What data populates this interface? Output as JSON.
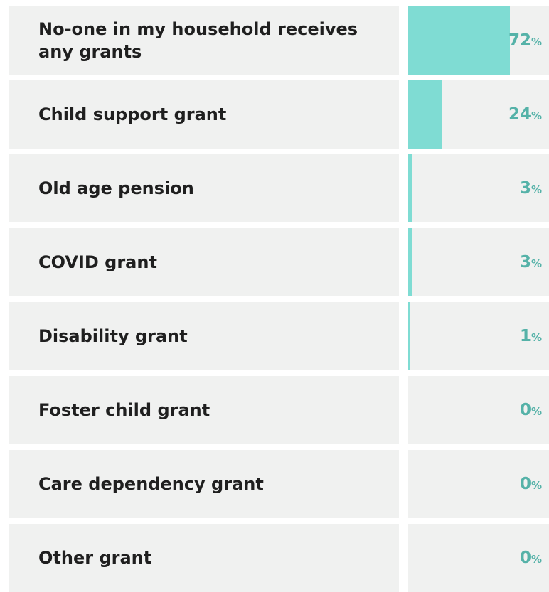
{
  "chart_data": {
    "type": "bar",
    "orientation": "horizontal",
    "categories": [
      "No-one in my household receives any grants",
      "Child support grant",
      "Old age pension",
      "COVID grant",
      "Disability grant",
      "Foster child grant",
      "Care dependency grant",
      "Other grant"
    ],
    "values": [
      72,
      24,
      3,
      3,
      1,
      0,
      0,
      0
    ],
    "value_unit": "%",
    "xlim": [
      0,
      100
    ],
    "grid": false,
    "legend": "none",
    "title": "",
    "xlabel": "",
    "ylabel": ""
  },
  "colors": {
    "bar": "#7fdcd3",
    "value_text": "#55b2a8",
    "cell_background": "#f0f1f0",
    "label_text": "#1f1f1f"
  }
}
